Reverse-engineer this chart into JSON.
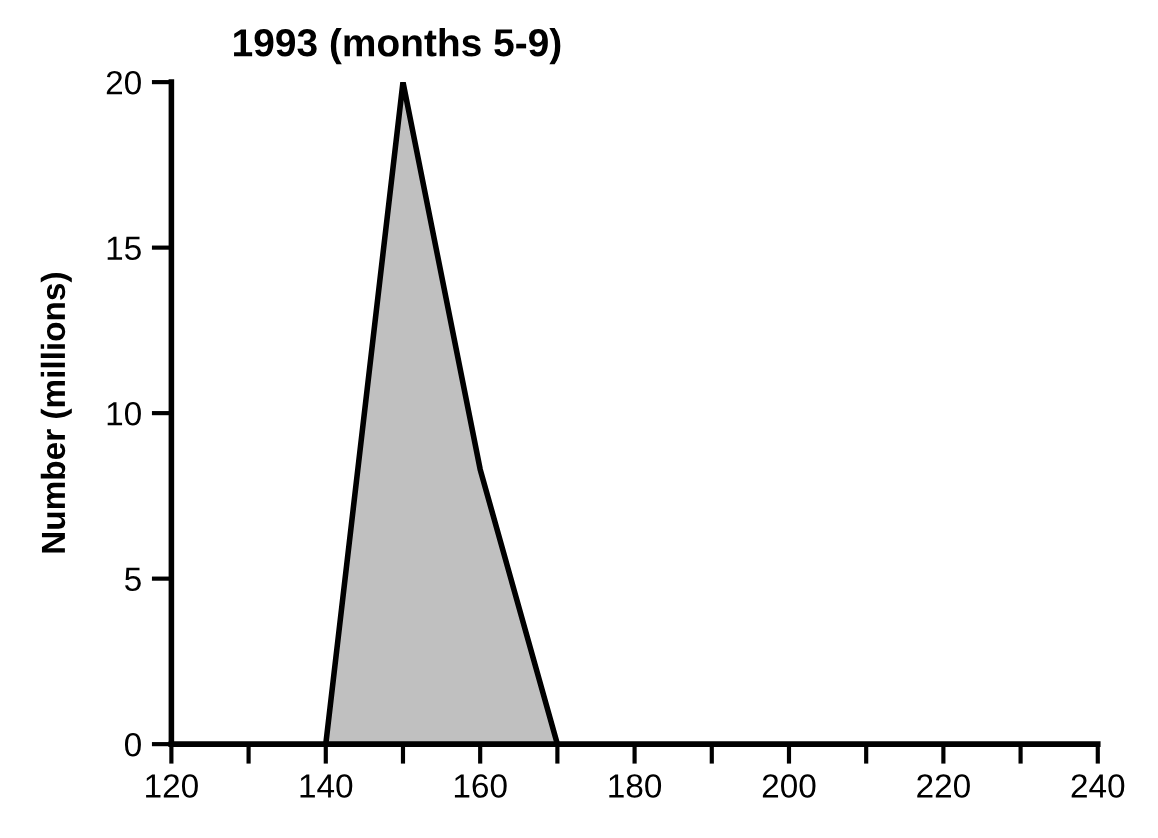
{
  "chart_data": {
    "type": "area",
    "title": "1993 (months 5-9)",
    "ylabel": "Number (millions)",
    "x": [
      140,
      150,
      160,
      170
    ],
    "series": [
      {
        "color": "#c0c0c0",
        "values": [
          0,
          20,
          8.3,
          0
        ]
      }
    ],
    "xlim": [
      120,
      240
    ],
    "xticks": [
      120,
      {
        "value": 130,
        "label": null
      },
      140,
      {
        "value": 150,
        "label": null
      },
      160,
      {
        "value": 170,
        "label": null
      },
      180,
      {
        "value": 190,
        "label": null
      },
      200,
      {
        "value": 210,
        "label": null
      },
      220,
      {
        "value": 230,
        "label": null
      },
      240
    ],
    "ylim": [
      0,
      20
    ],
    "yticks": [
      0,
      5,
      10,
      15,
      20
    ],
    "grid": false,
    "legend": false
  }
}
